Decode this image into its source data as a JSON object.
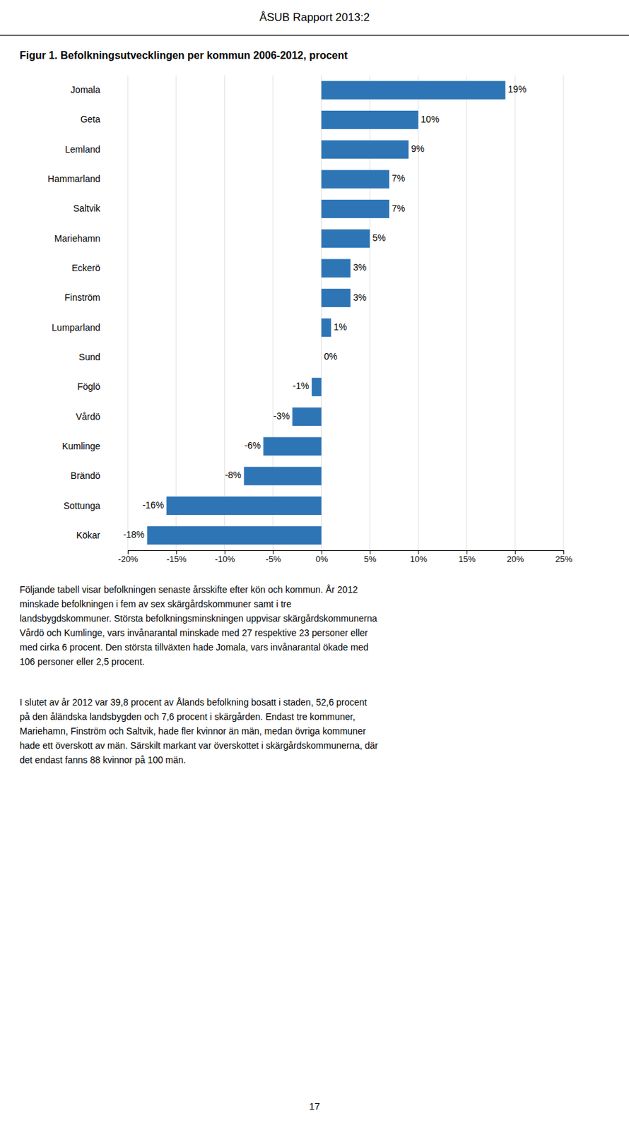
{
  "header": "ÅSUB Rapport 2013:2",
  "chart_data": {
    "type": "bar",
    "title": "Figur 1. Befolkningsutvecklingen per kommun 2006-2012, procent",
    "orientation": "horizontal",
    "categories": [
      "Jomala",
      "Geta",
      "Lemland",
      "Hammarland",
      "Saltvik",
      "Mariehamn",
      "Eckerö",
      "Finström",
      "Lumparland",
      "Sund",
      "Föglö",
      "Vårdö",
      "Kumlinge",
      "Brändö",
      "Sottunga",
      "Kökar"
    ],
    "values": [
      19,
      10,
      9,
      7,
      7,
      5,
      3,
      3,
      1,
      0,
      -1,
      -3,
      -6,
      -8,
      -16,
      -18
    ],
    "value_labels": [
      "19%",
      "10%",
      "9%",
      "7%",
      "7%",
      "5%",
      "3%",
      "3%",
      "1%",
      "0%",
      "-1%",
      "-3%",
      "-6%",
      "-8%",
      "-16%",
      "-18%"
    ],
    "color": "#2E75B6",
    "xlim": [
      -20,
      25
    ],
    "xticks": [
      {
        "value": -20,
        "label": "-20%"
      },
      {
        "value": -15,
        "label": "-15%"
      },
      {
        "value": -10,
        "label": "-10%"
      },
      {
        "value": -5,
        "label": "-5%"
      },
      {
        "value": 0,
        "label": "0%"
      },
      {
        "value": 5,
        "label": "5%"
      },
      {
        "value": 10,
        "label": "10%"
      },
      {
        "value": 15,
        "label": "15%"
      },
      {
        "value": 20,
        "label": "20%"
      },
      {
        "value": 25,
        "label": "25%"
      }
    ],
    "grid": true,
    "data_labels": true
  },
  "paragraphs": [
    [
      "Följande tabell visar befolkningen senaste årsskifte efter kön och kommun. År 2012",
      "minskade befolkningen i fem av sex skärgårdskommuner samt i tre",
      "landsbygdskommuner. Största befolkningsminskningen uppvisar skärgårdskommunerna",
      "Vårdö och Kumlinge, vars invånarantal minskade med 27 respektive 23 personer eller",
      "med cirka 6 procent. Den största tillväxten hade Jomala, vars invånarantal ökade med",
      "106 personer eller 2,5 procent."
    ],
    [
      "I slutet av år 2012 var 39,8 procent av Ålands befolkning bosatt i staden, 52,6 procent",
      "på den åländska landsbygden och 7,6 procent i skärgården. Endast tre kommuner,",
      "Mariehamn, Finström och Saltvik, hade fler kvinnor än män, medan övriga kommuner",
      "hade ett överskott av män. Särskilt markant var överskottet i skärgårdskommunerna, där",
      "det endast fanns 88 kvinnor på 100 män."
    ]
  ],
  "page_number": "17"
}
